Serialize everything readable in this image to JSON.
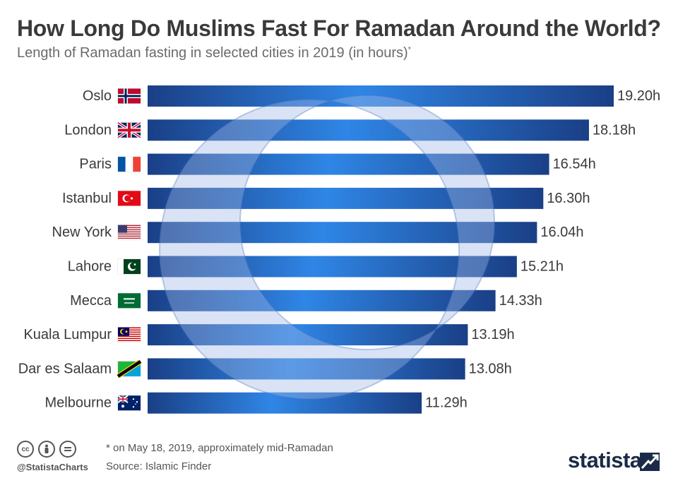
{
  "header": {
    "title": "How Long Do Muslims Fast For Ramadan Around the World?",
    "subtitle": "Length of Ramadan fasting in selected cities in 2019 (in hours)",
    "subtitle_mark": "*"
  },
  "chart_data": {
    "type": "bar",
    "orientation": "horizontal",
    "title": "How Long Do Muslims Fast For Ramadan Around the World?",
    "subtitle": "Length of Ramadan fasting in selected cities in 2019 (in hours)",
    "categories": [
      "Oslo",
      "London",
      "Paris",
      "Istanbul",
      "New York",
      "Lahore",
      "Mecca",
      "Kuala Lumpur",
      "Dar es Salaam",
      "Melbourne"
    ],
    "values": [
      19.2,
      18.18,
      16.54,
      16.3,
      16.04,
      15.21,
      14.33,
      13.19,
      13.08,
      11.29
    ],
    "value_labels": [
      "19.20h",
      "18.18h",
      "16.54h",
      "16.30h",
      "16.04h",
      "15.21h",
      "14.33h",
      "13.19h",
      "13.08h",
      "11.29h"
    ],
    "flags": [
      "norway-flag-icon",
      "uk-flag-icon",
      "france-flag-icon",
      "turkey-flag-icon",
      "usa-flag-icon",
      "pakistan-flag-icon",
      "saudi-arabia-flag-icon",
      "malaysia-flag-icon",
      "tanzania-flag-icon",
      "australia-flag-icon"
    ],
    "grid": false,
    "legend": "none",
    "bar_color_dark": "#1a3f86",
    "bar_color_light": "#2f86e6",
    "background_decoration": "crescent-moon"
  },
  "footer": {
    "footnote": "* on May 18, 2019, approximately mid-Ramadan",
    "source": "Source: Islamic Finder",
    "handle": "@StatistaCharts",
    "brand": "statista",
    "license_icons": [
      "cc-icon",
      "by-icon",
      "equals-icon"
    ]
  }
}
